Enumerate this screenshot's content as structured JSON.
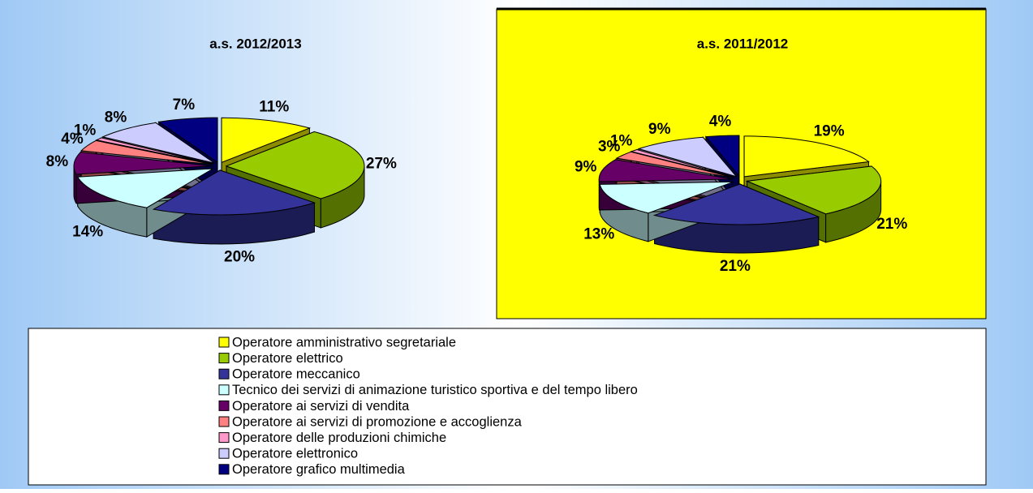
{
  "chart_data": [
    {
      "type": "pie",
      "title": "a.s. 2012/2013",
      "values": [
        11,
        27,
        20,
        14,
        8,
        4,
        1,
        8,
        7
      ],
      "value_labels": [
        "11%",
        "27%",
        "20%",
        "14%",
        "8%",
        "4%",
        "1%",
        "8%",
        "7%"
      ]
    },
    {
      "type": "pie",
      "title": "a.s. 2011/2012",
      "values": [
        19,
        21,
        21,
        13,
        9,
        3,
        1,
        9,
        4
      ],
      "value_labels": [
        "19%",
        "21%",
        "21%",
        "13%",
        "9%",
        "3%",
        "1%",
        "9%",
        "4%"
      ]
    }
  ],
  "legend": {
    "categories": [
      "Operatore amministrativo segretariale",
      "Operatore elettrico",
      "Operatore meccanico",
      "Tecnico dei servizi di animazione turistico sportiva e del tempo libero",
      "Operatore ai servizi di vendita",
      "Operatore ai servizi di promozione e accoglienza",
      "Operatore delle produzioni chimiche",
      "Operatore elettronico",
      "Operatore grafico multimedia"
    ],
    "colors": [
      "#ffff00",
      "#99cc00",
      "#333399",
      "#ccffff",
      "#660066",
      "#ff8080",
      "#ff99cc",
      "#ccccff",
      "#000080"
    ]
  }
}
